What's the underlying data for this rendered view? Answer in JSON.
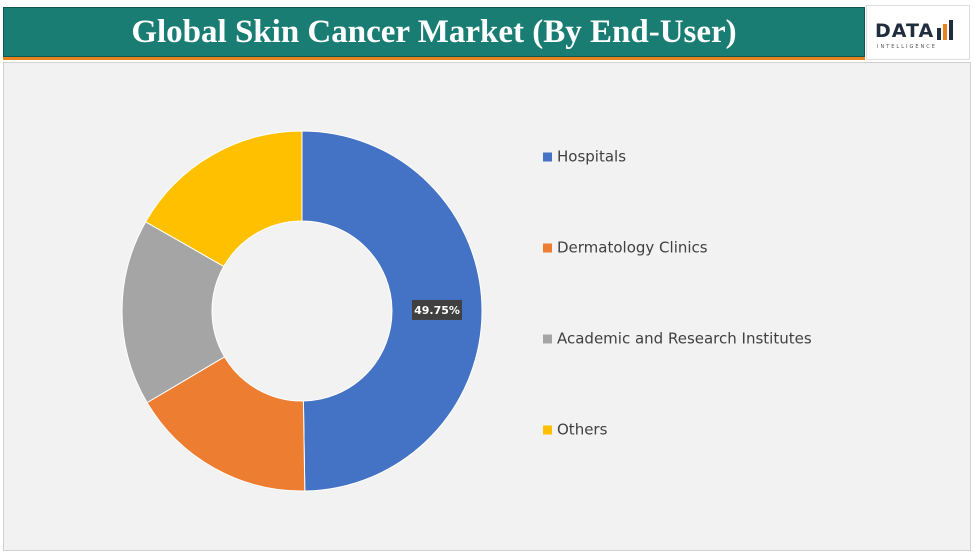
{
  "title": "Global Skin Cancer Market (By End-User)",
  "logo": {
    "name": "DATA",
    "tagline": "INTELLIGENCE"
  },
  "chart_data": {
    "type": "donut",
    "categories": [
      "Hospitals",
      "Dermatology Clinics",
      "Academic and Research Institutes",
      "Others"
    ],
    "values": [
      49.75,
      16.75,
      16.75,
      16.75
    ],
    "value_labels": [
      "49.75%",
      null,
      null,
      null
    ],
    "colors": [
      "#4472c4",
      "#ed7d31",
      "#a5a5a5",
      "#ffc000"
    ],
    "legend": "right"
  }
}
